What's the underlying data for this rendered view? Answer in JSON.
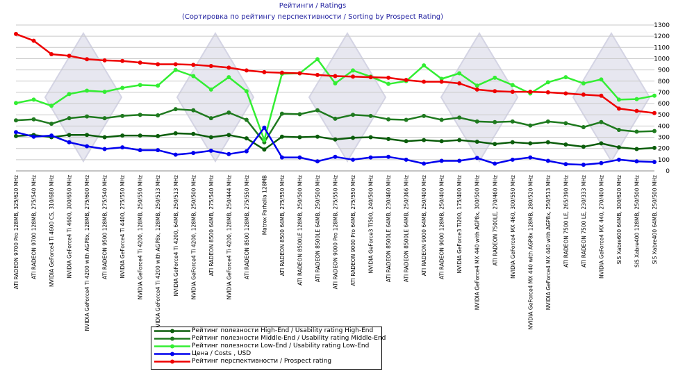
{
  "chart_data": {
    "type": "line",
    "title": "Рейтинги / Ratings",
    "subtitle": "(Сортировка по рейтингу перспективности / Sorting by Prospect Rating)",
    "categories": [
      "ATI RADEON 9700 Pro 128MB, 325/620 MHz",
      "ATI RADEON 9700 128MB, 275/540 MHz",
      "NVIDIA GeForce4 Ti 4600 CS, 310/680 MHz",
      "NVIDIA GeForce4 Ti 4600, 300/650 MHz",
      "NVIDIA GeForce4 Ti 4200 with AGP8x, 128MB, 275/600 MHz",
      "ATI RADEON 9500 128MB, 275/540 MHz",
      "NVIDIA GeForce4 Ti 4400, 275/550 MHz",
      "NVIDIA GeForce4 Ti 4200, 128MB, 250/550 MHz",
      "NVIDIA GeForce4 Ti 4200 with AGP8x, 128MB, 250/513 MHz",
      "NVIDIA GeForce4 Ti 4200, 64MB, 250/513 MHz",
      "NVIDIA GeForce4 Ti 4200, 128MB, 250/500 MHz",
      "ATI RADEON 8500 64MB, 275/540 MHz",
      "NVIDIA GeForce4 Ti 4200, 128MB, 250/444 MHz",
      "ATI RADEON 8500 128MB, 275/550 MHz",
      "Matrox Parhelia 128MB",
      "ATI RADEON 8500 64MB, 275/550 MHz",
      "ATI RADEON 8500LE 128MB, 250/500 MHz",
      "ATI RADEON 8500LE 64MB, 250/500 MHz",
      "ATI RADEON 9000 Pro 128MB, 275/550 MHz",
      "ATI RADEON 9000 Pro 64MB, 275/550 MHz",
      "NVIDIA GeForce3 Ti500, 240/500 MHz",
      "ATI RADEON 8500LE 64MB, 230/460 MHz",
      "ATI RADEON 8500LE 64MB, 250/366 MHz",
      "ATI RADEON 9000 64MB, 250/400 MHz",
      "ATI RADEON 9000 128MB, 250/400 MHz",
      "NVIDIA GeForce3 Ti200, 175/400 MHz",
      "NVIDIA GeForce4 MX 440 with AGP8x, 300/500 MHz",
      "ATI RADEON 7500LE, 270/460 MHz",
      "NVIDIA GeForce4 MX 460, 300/550 MHz",
      "NVIDIA GeForce4 MX 440 with AGP8x 128MB, 280/520 MHz",
      "NVIDIA GeForce4 MX 440 with AGP8x, 250/513 MHz",
      "ATI RADEON 7500 LE, 265/390 MHz",
      "ATI RADEON 7500 LE, 230/333 MHz",
      "NVIDIA GeForce4 MX 440, 270/400 MHz",
      "SiS Xabre600 64MB, 300/620 MHz",
      "SiS Xabre400 128MB, 250/500 MHz",
      "SiS Xabre400 64MB, 250/500 MHz"
    ],
    "series": [
      {
        "name": "Рейтинг полезности High-End / Usability rating High-End",
        "color": "#0b5d0b",
        "values": [
          310,
          320,
          300,
          320,
          320,
          300,
          315,
          315,
          310,
          335,
          330,
          300,
          320,
          290,
          190,
          305,
          300,
          305,
          280,
          295,
          300,
          285,
          265,
          275,
          265,
          275,
          260,
          240,
          255,
          245,
          255,
          235,
          215,
          245,
          210,
          195,
          205
        ]
      },
      {
        "name": "Рейтинг полезности Middle-End / Usability rating Middle-End",
        "color": "#1f7a1f",
        "values": [
          450,
          460,
          420,
          470,
          485,
          470,
          490,
          500,
          495,
          550,
          540,
          470,
          520,
          455,
          255,
          510,
          505,
          540,
          465,
          500,
          490,
          460,
          455,
          490,
          455,
          475,
          440,
          435,
          440,
          405,
          440,
          425,
          390,
          435,
          365,
          350,
          355
        ]
      },
      {
        "name": "Рейтинг полезности Low-End / Usability rating Low-End",
        "color": "#33ee33",
        "values": [
          605,
          635,
          580,
          685,
          715,
          705,
          740,
          765,
          760,
          900,
          845,
          725,
          835,
          710,
          275,
          865,
          870,
          995,
          780,
          895,
          840,
          775,
          800,
          940,
          820,
          870,
          760,
          830,
          765,
          690,
          790,
          835,
          780,
          815,
          635,
          640,
          670
        ]
      },
      {
        "name": "Цена / Costs , USD",
        "color": "#0000ee",
        "values": [
          345,
          305,
          315,
          255,
          220,
          195,
          210,
          185,
          185,
          145,
          160,
          180,
          150,
          175,
          385,
          120,
          120,
          85,
          125,
          100,
          120,
          125,
          100,
          65,
          90,
          90,
          115,
          65,
          100,
          120,
          90,
          60,
          55,
          70,
          100,
          85,
          80
        ]
      },
      {
        "name": "Рейтинг перспективности / Prospect rating",
        "color": "#ee0000",
        "values": [
          1220,
          1160,
          1040,
          1025,
          995,
          985,
          980,
          965,
          950,
          950,
          945,
          935,
          920,
          895,
          880,
          875,
          870,
          855,
          845,
          840,
          835,
          830,
          810,
          795,
          795,
          780,
          725,
          710,
          705,
          705,
          700,
          690,
          680,
          670,
          555,
          535,
          515
        ]
      }
    ],
    "ylim": [
      0,
      1300
    ],
    "yticks": [
      0,
      100,
      200,
      300,
      400,
      500,
      600,
      700,
      800,
      900,
      1000,
      1100,
      1200,
      1300
    ],
    "xlabel": "",
    "ylabel": "",
    "legend_position": "bottom"
  }
}
